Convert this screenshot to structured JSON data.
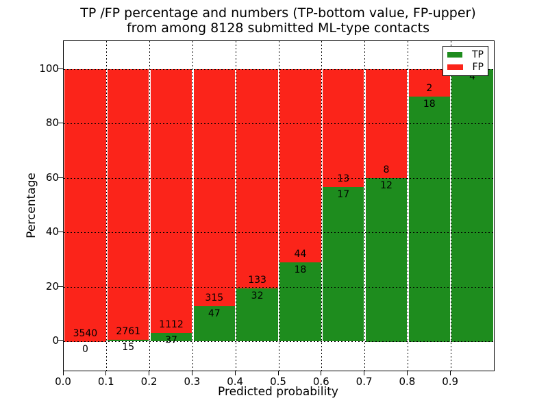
{
  "chart_data": {
    "type": "bar",
    "stacked": true,
    "title_lines": [
      "TP /FP percentage and numbers (TP-bottom value, FP-upper)",
      "from among 8128 submitted ML-type contacts"
    ],
    "xlabel": "Predicted probability",
    "ylabel": "Percentage",
    "total_submitted": 8128,
    "bins": [
      "0.0-0.1",
      "0.1-0.2",
      "0.2-0.3",
      "0.3-0.4",
      "0.4-0.5",
      "0.5-0.6",
      "0.6-0.7",
      "0.7-0.8",
      "0.8-0.9",
      "0.9-1.0"
    ],
    "x_tick_labels": [
      "0.0",
      "0.1",
      "0.2",
      "0.3",
      "0.4",
      "0.5",
      "0.6",
      "0.7",
      "0.8",
      "0.9"
    ],
    "y_ticks": [
      0,
      20,
      40,
      60,
      80,
      100
    ],
    "y_tick_labels": [
      "0",
      "20",
      "40",
      "60",
      "80",
      "100"
    ],
    "ylim": [
      -10.5,
      110.5
    ],
    "xlim": [
      0.0,
      1.0
    ],
    "grid": "dotted",
    "series": [
      {
        "name": "TP",
        "color": "#1e8c1e",
        "counts": [
          0,
          15,
          37,
          47,
          32,
          18,
          17,
          12,
          18,
          4
        ]
      },
      {
        "name": "FP",
        "color": "#fb241a",
        "counts": [
          3540,
          2761,
          1112,
          315,
          133,
          44,
          13,
          8,
          2,
          0
        ]
      }
    ],
    "tp_percent": [
      0.0,
      0.54,
      3.22,
      12.98,
      19.39,
      29.03,
      56.67,
      60.0,
      90.0,
      100.0
    ],
    "bar_labels": [
      {
        "fp": "3540",
        "tp": "0"
      },
      {
        "fp": "2761",
        "tp": "15"
      },
      {
        "fp": "1112",
        "tp": "37"
      },
      {
        "fp": "315",
        "tp": "47"
      },
      {
        "fp": "133",
        "tp": "32"
      },
      {
        "fp": "44",
        "tp": "18"
      },
      {
        "fp": "13",
        "tp": "17"
      },
      {
        "fp": "8",
        "tp": "12"
      },
      {
        "fp": "2",
        "tp": "18"
      },
      {
        "fp": "",
        "tp": "4"
      }
    ],
    "legend": {
      "position": "upper right",
      "entries": [
        {
          "label": "TP",
          "color": "#1e8c1e"
        },
        {
          "label": "FP",
          "color": "#fb241a"
        }
      ]
    }
  }
}
